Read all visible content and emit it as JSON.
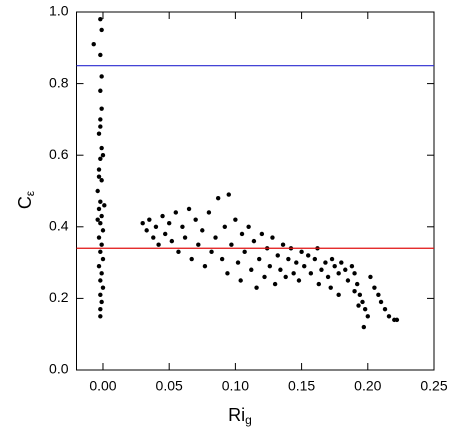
{
  "chart_data": {
    "type": "scatter",
    "xlabel": {
      "text": "Ri",
      "subscript": "g"
    },
    "ylabel": {
      "text": "C",
      "subscript": "ε"
    },
    "xlim": [
      -0.02,
      0.25
    ],
    "ylim": [
      0,
      1
    ],
    "xticks": [
      {
        "value": 0,
        "label": "0.00"
      },
      {
        "value": 0.05,
        "label": "0.05"
      },
      {
        "value": 0.1,
        "label": "0.10"
      },
      {
        "value": 0.15,
        "label": "0.15"
      },
      {
        "value": 0.2,
        "label": "0.20"
      },
      {
        "value": 0.25,
        "label": "0.25"
      }
    ],
    "yticks": [
      {
        "value": 0,
        "label": "0.0"
      },
      {
        "value": 0.2,
        "label": "0.2"
      },
      {
        "value": 0.4,
        "label": "0.4"
      },
      {
        "value": 0.6,
        "label": "0.6"
      },
      {
        "value": 0.8,
        "label": "0.8"
      },
      {
        "value": 1,
        "label": "1.0"
      }
    ],
    "hlines": [
      {
        "value": 0.85,
        "color": "#2a2ad0"
      },
      {
        "value": 0.34,
        "color": "#e01010"
      }
    ],
    "color": "#000000",
    "x": [
      -0.007,
      -0.002,
      -0.001,
      -0.002,
      -0.001,
      -0.002,
      -0.001,
      -0.002,
      -0.003,
      -0.001,
      -0.002,
      -0.003,
      -0.001,
      -0.004,
      -0.002,
      -0.003,
      -0.001,
      -0.002,
      0.0,
      -0.003,
      -0.001,
      -0.002,
      0.0,
      -0.003,
      -0.001,
      -0.002,
      0.0,
      -0.002,
      -0.001,
      -0.002,
      -0.002,
      -0.004,
      0.001,
      -0.003,
      0.0,
      -0.002,
      0.03,
      0.033,
      0.035,
      0.038,
      0.04,
      0.042,
      0.045,
      0.047,
      0.05,
      0.052,
      0.055,
      0.057,
      0.06,
      0.062,
      0.065,
      0.067,
      0.07,
      0.072,
      0.075,
      0.077,
      0.08,
      0.082,
      0.085,
      0.087,
      0.09,
      0.092,
      0.094,
      0.095,
      0.097,
      0.1,
      0.102,
      0.104,
      0.105,
      0.107,
      0.11,
      0.112,
      0.114,
      0.116,
      0.118,
      0.12,
      0.122,
      0.124,
      0.126,
      0.128,
      0.13,
      0.132,
      0.134,
      0.136,
      0.138,
      0.14,
      0.142,
      0.144,
      0.146,
      0.148,
      0.15,
      0.152,
      0.155,
      0.157,
      0.16,
      0.162,
      0.165,
      0.168,
      0.17,
      0.173,
      0.175,
      0.178,
      0.18,
      0.183,
      0.185,
      0.188,
      0.19,
      0.192,
      0.194,
      0.196,
      0.198,
      0.2,
      0.197,
      0.193,
      0.19,
      0.202,
      0.205,
      0.208,
      0.21,
      0.213,
      0.216,
      0.22,
      0.222,
      0.172,
      0.163,
      0.178
    ],
    "values": [
      0.91,
      0.98,
      0.95,
      0.88,
      0.82,
      0.78,
      0.73,
      0.7,
      0.66,
      0.62,
      0.59,
      0.56,
      0.53,
      0.5,
      0.47,
      0.45,
      0.43,
      0.41,
      0.39,
      0.37,
      0.35,
      0.33,
      0.31,
      0.29,
      0.27,
      0.25,
      0.23,
      0.21,
      0.19,
      0.17,
      0.15,
      0.42,
      0.46,
      0.54,
      0.6,
      0.68,
      0.41,
      0.39,
      0.42,
      0.37,
      0.4,
      0.35,
      0.43,
      0.38,
      0.41,
      0.36,
      0.44,
      0.33,
      0.4,
      0.37,
      0.45,
      0.31,
      0.42,
      0.35,
      0.39,
      0.29,
      0.44,
      0.33,
      0.37,
      0.48,
      0.31,
      0.4,
      0.27,
      0.49,
      0.35,
      0.42,
      0.3,
      0.25,
      0.38,
      0.33,
      0.4,
      0.28,
      0.36,
      0.23,
      0.31,
      0.38,
      0.26,
      0.34,
      0.29,
      0.37,
      0.24,
      0.32,
      0.28,
      0.35,
      0.26,
      0.31,
      0.34,
      0.27,
      0.3,
      0.25,
      0.33,
      0.29,
      0.32,
      0.27,
      0.31,
      0.34,
      0.28,
      0.3,
      0.26,
      0.31,
      0.29,
      0.27,
      0.3,
      0.28,
      0.25,
      0.29,
      0.27,
      0.24,
      0.21,
      0.19,
      0.17,
      0.15,
      0.12,
      0.18,
      0.22,
      0.26,
      0.23,
      0.21,
      0.19,
      0.17,
      0.15,
      0.14,
      0.14,
      0.23,
      0.24,
      0.21
    ]
  }
}
